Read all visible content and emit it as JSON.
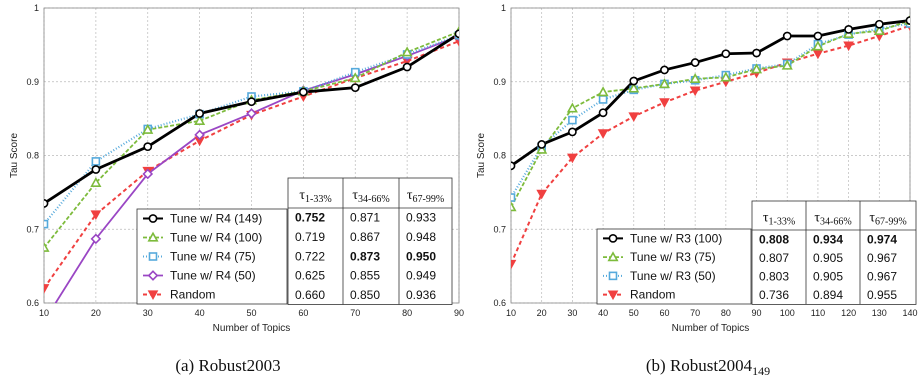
{
  "chart_data": [
    {
      "type": "line",
      "caption": "(a) Robust2003",
      "xlabel": "Number of Topics",
      "ylabel": "Tau Score",
      "x": [
        10,
        20,
        30,
        40,
        50,
        60,
        70,
        80,
        90
      ],
      "xticks": [
        "10",
        "20",
        "30",
        "40",
        "50",
        "60",
        "70",
        "80",
        "90"
      ],
      "ylim": [
        0.6,
        1.0
      ],
      "yticks": [
        "0.6",
        "0.7",
        "0.8",
        "0.9",
        "1"
      ],
      "grid": true,
      "series": [
        {
          "name": "Tune w/ R4 (149)",
          "color": "#000000",
          "marker": "circle",
          "dash": "",
          "width": 2.8,
          "values": [
            0.735,
            0.781,
            0.812,
            0.857,
            0.873,
            0.886,
            0.892,
            0.92,
            0.965
          ]
        },
        {
          "name": "Tune w/ R4 (100)",
          "color": "#7dbb3c",
          "marker": "triangle",
          "dash": "4,2",
          "width": 1.8,
          "values": [
            0.675,
            0.763,
            0.835,
            0.847,
            0.875,
            0.887,
            0.905,
            0.94,
            0.968
          ]
        },
        {
          "name": "Tune w/ R4 (75)",
          "color": "#56aadc",
          "marker": "square",
          "dash": "1,2",
          "width": 2.2,
          "values": [
            0.707,
            0.792,
            0.836,
            0.856,
            0.88,
            0.887,
            0.913,
            0.937,
            0.963
          ]
        },
        {
          "name": "Tune w/ R4 (50)",
          "color": "#9a46c4",
          "marker": "diamond",
          "dash": "",
          "width": 1.8,
          "values": [
            0.575,
            0.687,
            0.775,
            0.828,
            0.857,
            0.888,
            0.91,
            0.935,
            0.962
          ]
        },
        {
          "name": "Random",
          "color": "#f04040",
          "marker": "downtriangle",
          "dash": "4,3",
          "width": 2.0,
          "values": [
            0.62,
            0.72,
            0.779,
            0.82,
            0.855,
            0.88,
            0.905,
            0.928,
            0.955
          ]
        }
      ],
      "table": {
        "headers": [
          [
            "τ",
            "1-33%"
          ],
          [
            "τ",
            "34-66%"
          ],
          [
            "τ",
            "67-99%"
          ]
        ],
        "rows": [
          [
            "0.752",
            "0.871",
            "0.933"
          ],
          [
            "0.719",
            "0.867",
            "0.948"
          ],
          [
            "0.722",
            "0.873",
            "0.950"
          ],
          [
            "0.625",
            "0.855",
            "0.949"
          ],
          [
            "0.660",
            "0.850",
            "0.936"
          ]
        ],
        "bold": [
          [
            0,
            0
          ],
          [
            2,
            1
          ],
          [
            2,
            2
          ]
        ]
      }
    },
    {
      "type": "line",
      "caption": "(b) Robust2004",
      "caption_sub": "149",
      "xlabel": "Number of Topics",
      "ylabel": "Tau Score",
      "x": [
        10,
        20,
        30,
        40,
        50,
        60,
        70,
        80,
        90,
        100,
        110,
        120,
        130,
        140
      ],
      "xticks": [
        "10",
        "20",
        "30",
        "40",
        "50",
        "60",
        "70",
        "80",
        "90",
        "100",
        "110",
        "120",
        "130",
        "140"
      ],
      "ylim": [
        0.6,
        1.0
      ],
      "yticks": [
        "0.6",
        "0.7",
        "0.8",
        "0.9",
        "1"
      ],
      "grid": true,
      "series": [
        {
          "name": "Tune w/ R3 (100)",
          "color": "#000000",
          "marker": "circle",
          "dash": "",
          "width": 2.8,
          "values": [
            0.786,
            0.815,
            0.832,
            0.858,
            0.901,
            0.916,
            0.926,
            0.938,
            0.939,
            0.962,
            0.962,
            0.971,
            0.978,
            0.983
          ]
        },
        {
          "name": "Tune w/ R3 (75)",
          "color": "#7dbb3c",
          "marker": "triangle",
          "dash": "4,2",
          "width": 1.8,
          "values": [
            0.73,
            0.808,
            0.864,
            0.886,
            0.891,
            0.897,
            0.904,
            0.906,
            0.917,
            0.922,
            0.948,
            0.965,
            0.969,
            0.983
          ]
        },
        {
          "name": "Tune w/ R3 (50)",
          "color": "#56aadc",
          "marker": "square",
          "dash": "1,2",
          "width": 2.2,
          "values": [
            0.743,
            0.812,
            0.848,
            0.876,
            0.889,
            0.897,
            0.902,
            0.909,
            0.918,
            0.924,
            0.951,
            0.964,
            0.972,
            0.979
          ]
        },
        {
          "name": "Random",
          "color": "#f04040",
          "marker": "downtriangle",
          "dash": "4,3",
          "width": 2.0,
          "values": [
            0.653,
            0.748,
            0.797,
            0.83,
            0.853,
            0.872,
            0.888,
            0.9,
            0.912,
            0.926,
            0.938,
            0.949,
            0.962,
            0.976
          ]
        }
      ],
      "table": {
        "headers": [
          [
            "τ",
            "1-33%"
          ],
          [
            "τ",
            "34-66%"
          ],
          [
            "τ",
            "67-99%"
          ]
        ],
        "rows": [
          [
            "0.808",
            "0.934",
            "0.974"
          ],
          [
            "0.807",
            "0.905",
            "0.967"
          ],
          [
            "0.803",
            "0.905",
            "0.967"
          ],
          [
            "0.736",
            "0.894",
            "0.955"
          ]
        ],
        "bold": [
          [
            0,
            0
          ],
          [
            0,
            1
          ],
          [
            0,
            2
          ]
        ]
      }
    }
  ]
}
